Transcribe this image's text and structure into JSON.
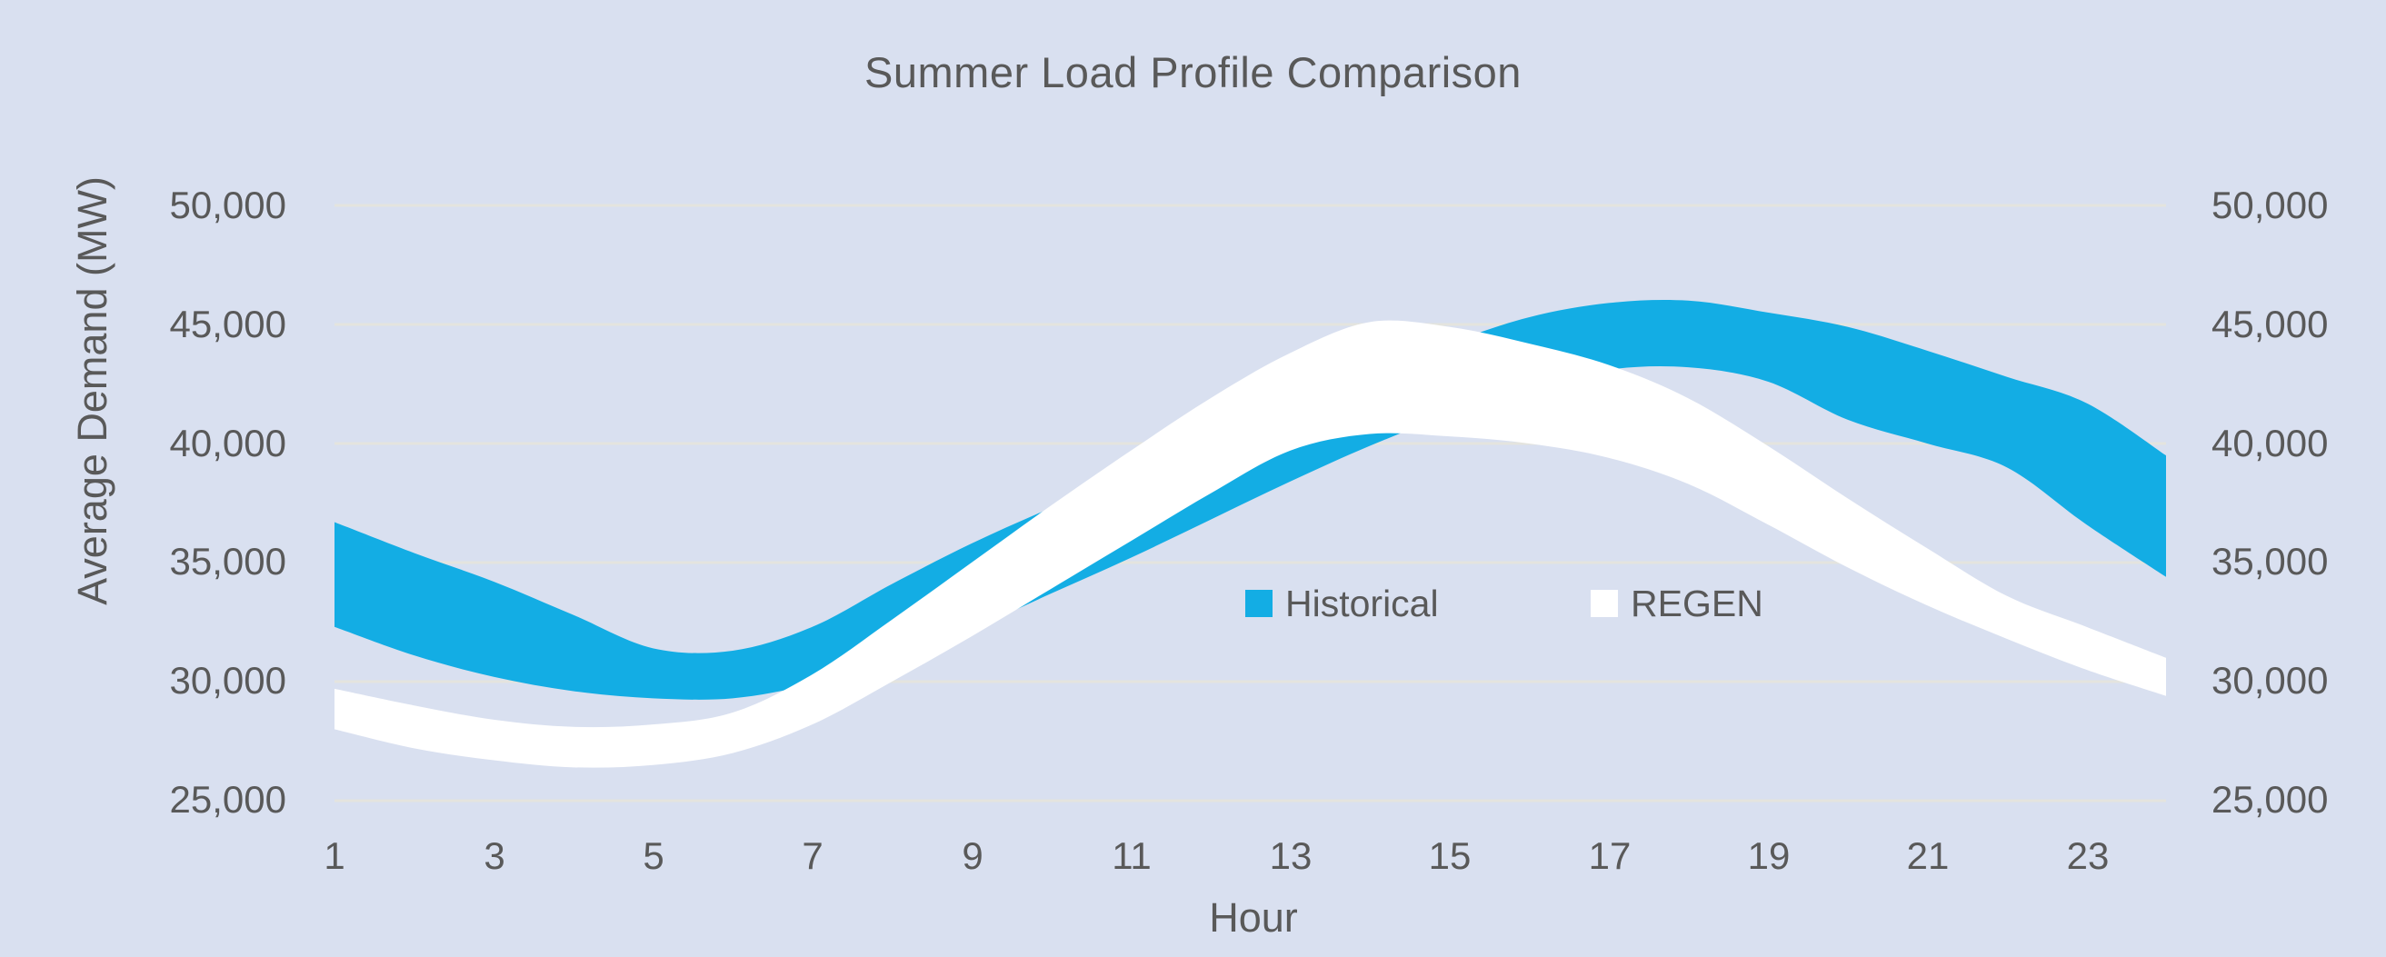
{
  "title": "Summer Load Profile Comparison",
  "y_axis": {
    "title": "Average Demand (MW)",
    "tick_labels": [
      "50,000",
      "45,000",
      "40,000",
      "35,000",
      "30,000",
      "25,000"
    ]
  },
  "x_axis": {
    "title": "Hour",
    "tick_labels": [
      "1",
      "3",
      "5",
      "7",
      "9",
      "11",
      "13",
      "15",
      "17",
      "19",
      "21",
      "23"
    ]
  },
  "legend": [
    {
      "label": "Historical",
      "color": "#13ade4"
    },
    {
      "label": "REGEN",
      "color": "#ffffff"
    }
  ],
  "colors": {
    "background": "#d9e0f0",
    "gridline": "#e4e4de",
    "text": "#595959",
    "historical_band": "#13ade4",
    "regen_band": "#ffffff"
  },
  "chart_data": {
    "type": "area",
    "subtype": "band-range",
    "title": "Summer Load Profile Comparison",
    "xlabel": "Hour",
    "ylabel": "Average Demand (MW)",
    "xlim": [
      1,
      24
    ],
    "ylim": [
      25000,
      50000
    ],
    "x_ticks": [
      1,
      3,
      5,
      7,
      9,
      11,
      13,
      15,
      17,
      19,
      21,
      23
    ],
    "y_ticks": [
      25000,
      30000,
      35000,
      40000,
      45000,
      50000
    ],
    "grid": "horizontal",
    "legend_position": "inside-center-right",
    "x": [
      1,
      2,
      3,
      4,
      5,
      6,
      7,
      8,
      9,
      10,
      11,
      12,
      13,
      14,
      15,
      16,
      17,
      18,
      19,
      20,
      21,
      22,
      23,
      24
    ],
    "series": [
      {
        "name": "Historical",
        "color": "#13ade4",
        "upper": [
          36700,
          35400,
          34200,
          32800,
          31400,
          31300,
          32300,
          34100,
          35800,
          37300,
          38700,
          40000,
          41400,
          42800,
          44200,
          45300,
          45900,
          46000,
          45500,
          44900,
          43900,
          42800,
          41700,
          39500
        ],
        "lower": [
          32300,
          31100,
          30200,
          29600,
          29300,
          29300,
          29900,
          30900,
          32200,
          33700,
          35200,
          36800,
          38400,
          39900,
          41200,
          42300,
          43100,
          43200,
          42600,
          41000,
          40000,
          39000,
          36600,
          34400
        ]
      },
      {
        "name": "REGEN",
        "color": "#ffffff",
        "upper": [
          29700,
          29000,
          28400,
          28100,
          28200,
          28700,
          30300,
          32600,
          35000,
          37400,
          39700,
          41900,
          43800,
          45100,
          44900,
          44200,
          43300,
          41900,
          39900,
          37700,
          35600,
          33600,
          32300,
          31000
        ],
        "lower": [
          28000,
          27200,
          26700,
          26400,
          26500,
          27000,
          28200,
          30000,
          31900,
          33900,
          35900,
          37900,
          39700,
          40400,
          40300,
          40000,
          39400,
          38300,
          36600,
          34800,
          33200,
          31800,
          30500,
          29400
        ]
      }
    ]
  }
}
